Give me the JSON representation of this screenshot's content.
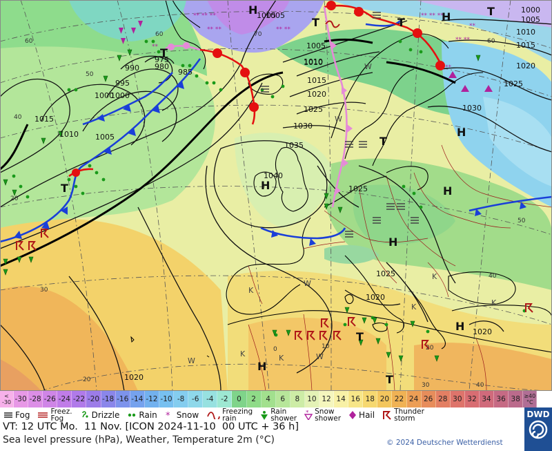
{
  "map": {
    "isobar_labels": [
      {
        "text": "1005"
      },
      {
        "text": "1010"
      },
      {
        "text": "1005"
      },
      {
        "text": "1000"
      },
      {
        "text": "1015"
      },
      {
        "text": "1010"
      },
      {
        "text": "1005"
      },
      {
        "text": "1000"
      },
      {
        "text": "995"
      },
      {
        "text": "990"
      },
      {
        "text": "985"
      },
      {
        "text": "980"
      },
      {
        "text": "975"
      },
      {
        "text": "1005"
      },
      {
        "text": "1010"
      },
      {
        "text": "1015"
      },
      {
        "text": "1020"
      },
      {
        "text": "1025"
      },
      {
        "text": "1030"
      },
      {
        "text": "1035"
      },
      {
        "text": "1040"
      },
      {
        "text": "1025"
      },
      {
        "text": "1025"
      },
      {
        "text": "1020"
      },
      {
        "text": "1020"
      },
      {
        "text": "1020"
      },
      {
        "text": "1030"
      },
      {
        "text": "1025"
      },
      {
        "text": "1020"
      },
      {
        "text": "1015"
      },
      {
        "text": "1010"
      },
      {
        "text": "1005"
      },
      {
        "text": "1000"
      }
    ],
    "latlon_labels": [
      "60",
      "50",
      "40",
      "30",
      "20",
      "60",
      "70",
      "60",
      "50",
      "40",
      "0",
      "10",
      "20",
      "30",
      "40",
      "20"
    ],
    "pressure_centers": [
      {
        "type": "H"
      },
      {
        "type": "H"
      },
      {
        "type": "H"
      },
      {
        "type": "H"
      },
      {
        "type": "H"
      },
      {
        "type": "H"
      },
      {
        "type": "H"
      },
      {
        "type": "H"
      },
      {
        "type": "T"
      },
      {
        "type": "T"
      },
      {
        "type": "T"
      },
      {
        "type": "T"
      },
      {
        "type": "T"
      },
      {
        "type": "T"
      },
      {
        "type": "T"
      },
      {
        "type": "T"
      }
    ],
    "weather_letters": [
      "K",
      "K",
      "K",
      "K",
      "W",
      "W",
      "W",
      "W",
      "W",
      "K",
      "K"
    ]
  },
  "scale": {
    "cells": [
      {
        "label": "<\n-30",
        "color": "#f7b1ea"
      },
      {
        "label": "-30",
        "color": "#e798e6"
      },
      {
        "label": "-28",
        "color": "#dc8ee6"
      },
      {
        "label": "-26",
        "color": "#cf85e7"
      },
      {
        "label": "-24",
        "color": "#c07ce8"
      },
      {
        "label": "-22",
        "color": "#b07ae9"
      },
      {
        "label": "-20",
        "color": "#9c7ce8"
      },
      {
        "label": "-18",
        "color": "#8a86ea"
      },
      {
        "label": "-16",
        "color": "#7d93ec"
      },
      {
        "label": "-14",
        "color": "#75a2ee"
      },
      {
        "label": "-12",
        "color": "#72b1ef"
      },
      {
        "label": "-10",
        "color": "#77c0f0"
      },
      {
        "label": "-8",
        "color": "#84cdef"
      },
      {
        "label": "-6",
        "color": "#8ed8ea"
      },
      {
        "label": "-4",
        "color": "#97e1e0"
      },
      {
        "label": "-2",
        "color": "#9de8d2"
      },
      {
        "label": "0",
        "color": "#7fd48a"
      },
      {
        "label": "2",
        "color": "#8fdb88"
      },
      {
        "label": "4",
        "color": "#a2e08e"
      },
      {
        "label": "6",
        "color": "#b7e69a"
      },
      {
        "label": "8",
        "color": "#cdeca6"
      },
      {
        "label": "10",
        "color": "#e4f2b6"
      },
      {
        "label": "12",
        "color": "#f5f6bd"
      },
      {
        "label": "14",
        "color": "#f8f1a6"
      },
      {
        "label": "16",
        "color": "#f7e688"
      },
      {
        "label": "18",
        "color": "#f6d870"
      },
      {
        "label": "20",
        "color": "#f3c65d"
      },
      {
        "label": "22",
        "color": "#f0b254"
      },
      {
        "label": "24",
        "color": "#ec9e55"
      },
      {
        "label": "26",
        "color": "#e78d5b"
      },
      {
        "label": "28",
        "color": "#e37f63"
      },
      {
        "label": "30",
        "color": "#de746b"
      },
      {
        "label": "32",
        "color": "#d86d72"
      },
      {
        "label": "34",
        "color": "#d06a7b"
      },
      {
        "label": "36",
        "color": "#c66a84"
      },
      {
        "label": "38",
        "color": "#bb6b8c"
      },
      {
        "label": "≥40\n°C",
        "color": "#b16e95"
      }
    ]
  },
  "legend": {
    "items": [
      {
        "label": "Fog",
        "icon": "fog-icon"
      },
      {
        "label": "Freez.\nFog",
        "icon": "freezing-fog-icon"
      },
      {
        "label": "Drizzle",
        "icon": "drizzle-icon"
      },
      {
        "label": "Rain",
        "icon": "rain-icon"
      },
      {
        "label": "Snow",
        "icon": "snow-icon"
      },
      {
        "label": "Freezing\nrain",
        "icon": "freezing-rain-icon"
      },
      {
        "label": "Rain\nshower",
        "icon": "rain-shower-icon"
      },
      {
        "label": "Snow\nshower",
        "icon": "snow-shower-icon"
      },
      {
        "label": "Hail",
        "icon": "hail-icon"
      },
      {
        "label": "Thunder\nstorm",
        "icon": "thunderstorm-icon"
      }
    ]
  },
  "info": {
    "valid_time": "VT: 12 UTC Mo.  11 Nov. [ICON 2024-11-10  00 UTC + 36 h]",
    "description": "Sea level pressure (hPa), Weather, Temperature 2m (°C)",
    "copyright": "© 2024 Deutscher Wetterdienst",
    "logo_text": "DWD"
  },
  "colors": {
    "cold_front": "#1a3fd8",
    "warm_front": "#e41010",
    "occlusion": "#e58ad8",
    "isobar": "#111111",
    "coast": "#000000",
    "border": "#9b1c1c"
  }
}
